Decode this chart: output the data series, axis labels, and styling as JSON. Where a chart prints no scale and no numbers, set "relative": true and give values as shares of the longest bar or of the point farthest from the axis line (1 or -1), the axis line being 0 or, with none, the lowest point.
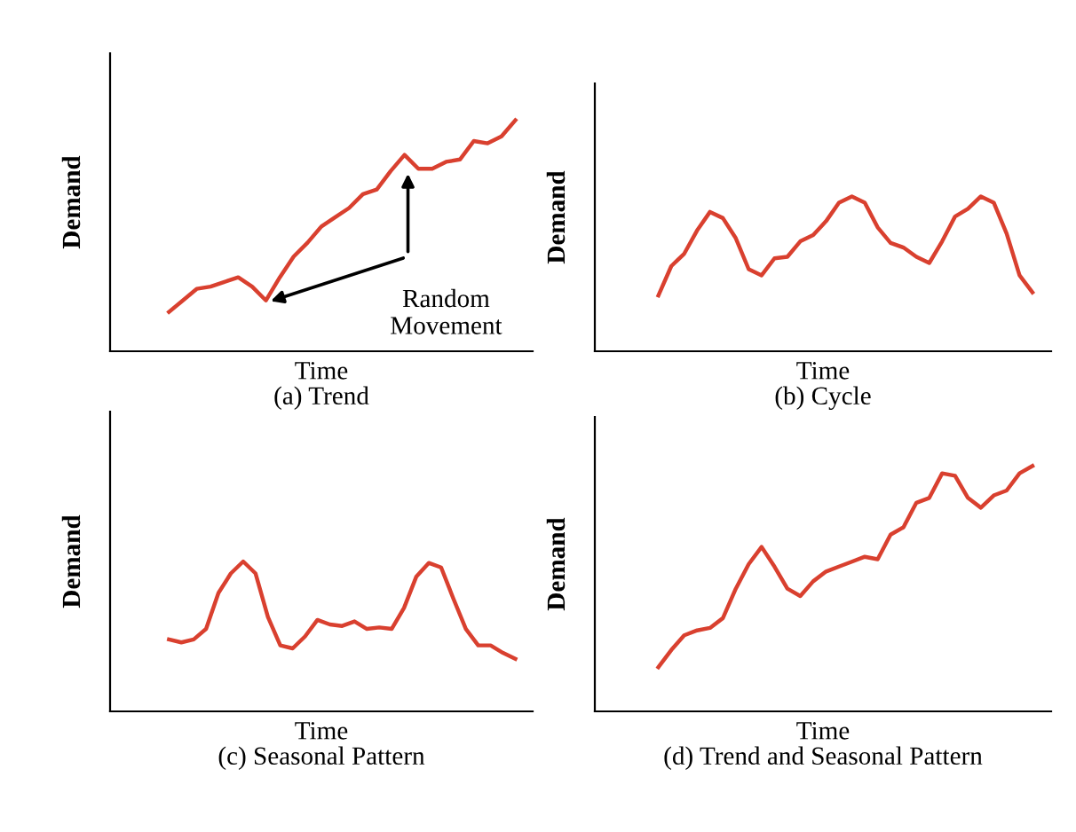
{
  "chart_data": [
    {
      "type": "line",
      "relative": true,
      "xlabel": "Time\n(a) Trend",
      "ylabel": "Demand",
      "marker": "none",
      "line_style": "solid",
      "categories": [
        null,
        null,
        null,
        null,
        null,
        null,
        null,
        null,
        null,
        null,
        null,
        null,
        null,
        null,
        null,
        null,
        null,
        null,
        null,
        null,
        null,
        null,
        null,
        null,
        null,
        null
      ],
      "series": [
        {
          "color": "#d9402f",
          "values": [
            0.17,
            0.22,
            0.27,
            0.28,
            0.3,
            0.32,
            0.28,
            0.22,
            0.32,
            0.41,
            0.47,
            0.54,
            0.58,
            0.62,
            0.68,
            0.7,
            0.78,
            0.85,
            0.79,
            0.79,
            0.82,
            0.83,
            0.91,
            0.9,
            0.93,
            1
          ]
        }
      ],
      "annotations": [
        "Random\nMovement"
      ]
    },
    {
      "type": "line",
      "relative": true,
      "xlabel": "Time\n(b) Cycle",
      "ylabel": "Demand",
      "marker": "none",
      "line_style": "solid",
      "categories": [
        null,
        null,
        null,
        null,
        null,
        null,
        null,
        null,
        null,
        null,
        null,
        null,
        null,
        null,
        null,
        null,
        null,
        null,
        null,
        null,
        null,
        null,
        null,
        null,
        null,
        null,
        null,
        null,
        null,
        null
      ],
      "series": [
        {
          "color": "#d9402f",
          "values": [
            0.36,
            0.55,
            0.63,
            0.78,
            0.9,
            0.86,
            0.73,
            0.53,
            0.49,
            0.6,
            0.61,
            0.71,
            0.75,
            0.84,
            0.96,
            1,
            0.96,
            0.8,
            0.7,
            0.67,
            0.61,
            0.57,
            0.71,
            0.87,
            0.92,
            1,
            0.96,
            0.76,
            0.49,
            0.38
          ]
        }
      ]
    },
    {
      "type": "line",
      "relative": true,
      "xlabel": "Time\n(c) Seasonal Pattern",
      "ylabel": "Demand",
      "marker": "none",
      "line_style": "solid",
      "categories": [
        null,
        null,
        null,
        null,
        null,
        null,
        null,
        null,
        null,
        null,
        null,
        null,
        null,
        null,
        null,
        null,
        null,
        null,
        null,
        null,
        null,
        null,
        null,
        null,
        null,
        null,
        null,
        null,
        null
      ],
      "series": [
        {
          "color": "#d9402f",
          "values": [
            0.48,
            0.46,
            0.48,
            0.55,
            0.79,
            0.92,
            1,
            0.92,
            0.63,
            0.44,
            0.42,
            0.5,
            0.61,
            0.58,
            0.57,
            0.6,
            0.55,
            0.56,
            0.55,
            0.69,
            0.9,
            0.99,
            0.96,
            0.75,
            0.55,
            0.44,
            0.44,
            0.39,
            0.35
          ]
        }
      ]
    },
    {
      "type": "line",
      "relative": true,
      "xlabel": "Time\n(d) Trend and Seasonal Pattern",
      "ylabel": "Demand",
      "marker": "none",
      "line_style": "solid",
      "categories": [
        null,
        null,
        null,
        null,
        null,
        null,
        null,
        null,
        null,
        null,
        null,
        null,
        null,
        null,
        null,
        null,
        null,
        null,
        null,
        null,
        null,
        null,
        null,
        null,
        null,
        null,
        null,
        null,
        null,
        null
      ],
      "series": [
        {
          "color": "#d9402f",
          "values": [
            0.18,
            0.25,
            0.31,
            0.33,
            0.34,
            0.38,
            0.5,
            0.6,
            0.67,
            0.59,
            0.5,
            0.47,
            0.53,
            0.57,
            0.59,
            0.61,
            0.63,
            0.62,
            0.72,
            0.75,
            0.85,
            0.87,
            0.97,
            0.96,
            0.87,
            0.83,
            0.88,
            0.9,
            0.97,
            1
          ]
        }
      ]
    }
  ]
}
